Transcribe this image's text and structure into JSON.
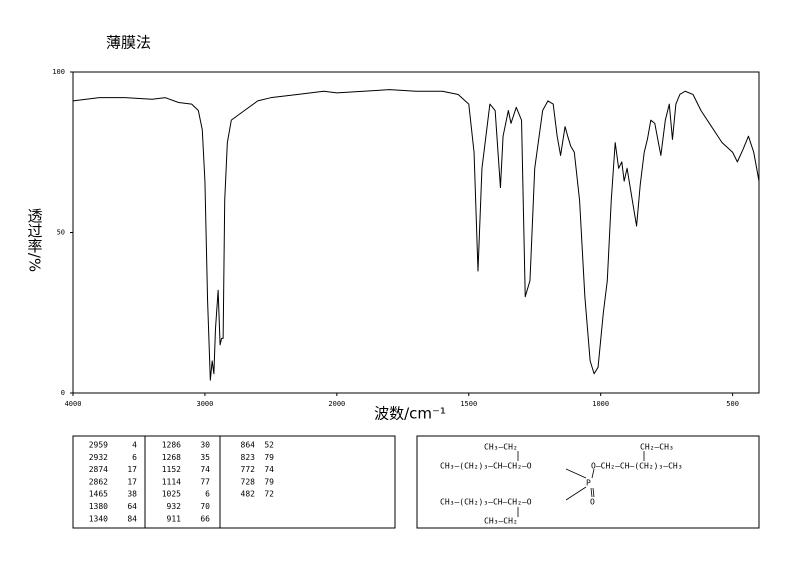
{
  "chart_data": {
    "type": "line",
    "title": "薄膜法",
    "x_label": "波数/cm⁻¹",
    "y_label": "透过率/%",
    "x": [
      4000,
      3800,
      3600,
      3400,
      3300,
      3200,
      3100,
      3050,
      3020,
      3000,
      2980,
      2959,
      2945,
      2932,
      2920,
      2900,
      2885,
      2874,
      2862,
      2850,
      2830,
      2800,
      2700,
      2600,
      2500,
      2300,
      2100,
      2000,
      1800,
      1700,
      1600,
      1540,
      1500,
      1480,
      1465,
      1450,
      1420,
      1400,
      1380,
      1370,
      1350,
      1340,
      1320,
      1300,
      1286,
      1268,
      1250,
      1220,
      1200,
      1180,
      1165,
      1152,
      1135,
      1125,
      1114,
      1100,
      1080,
      1060,
      1040,
      1025,
      1010,
      990,
      975,
      960,
      945,
      932,
      920,
      911,
      900,
      880,
      864,
      850,
      835,
      823,
      810,
      795,
      772,
      755,
      740,
      728,
      715,
      700,
      680,
      650,
      620,
      580,
      540,
      500,
      482,
      460,
      440,
      420,
      400
    ],
    "values": [
      91,
      92,
      92,
      91.5,
      92,
      90.5,
      90,
      88,
      82,
      66,
      29,
      4,
      10,
      6,
      20,
      32,
      15,
      17,
      17,
      60,
      78,
      85,
      88,
      91,
      92,
      93,
      94,
      93.5,
      94.5,
      94,
      94,
      93,
      90,
      75,
      38,
      70,
      90,
      88,
      64,
      80,
      88,
      84,
      89,
      85,
      30,
      35,
      70,
      88,
      91,
      90,
      80,
      74,
      83,
      80,
      77,
      75,
      60,
      30,
      10,
      6,
      8,
      25,
      35,
      60,
      78,
      70,
      72,
      66,
      70,
      60,
      52,
      65,
      75,
      79,
      85,
      84,
      74,
      85,
      90,
      79,
      90,
      93,
      94,
      93,
      88,
      83,
      78,
      75,
      72,
      76,
      80,
      75,
      66
    ],
    "color": "#000000",
    "xlim": [
      4000,
      400
    ],
    "xticks": [
      4000,
      3000,
      2000,
      1500,
      1000,
      500
    ],
    "ylim": [
      0,
      100
    ],
    "yticks": [
      0,
      50,
      100
    ],
    "grid": false
  },
  "peak_table": {
    "columns": [
      [
        [
          2959,
          4
        ],
        [
          2932,
          6
        ],
        [
          2874,
          17
        ],
        [
          2862,
          17
        ],
        [
          1465,
          38
        ],
        [
          1380,
          64
        ],
        [
          1340,
          84
        ]
      ],
      [
        [
          1286,
          30
        ],
        [
          1268,
          35
        ],
        [
          1152,
          74
        ],
        [
          1114,
          77
        ],
        [
          1025,
          6
        ],
        [
          932,
          70
        ],
        [
          911,
          66
        ]
      ],
      [
        [
          864,
          52
        ],
        [
          823,
          79
        ],
        [
          772,
          74
        ],
        [
          728,
          79
        ],
        [
          482,
          72
        ]
      ]
    ]
  },
  "structure": {
    "labels": [
      "CH₃—CH₂",
      "CH₂—CH₃",
      "CH₃—(CH₂)₃—CH—CH₂—O",
      "O—CH₂—CH—(CH₂)₃—CH₃",
      "P",
      "CH₃—(CH₂)₃—CH—CH₂—O",
      "O",
      "CH₃—CH₂"
    ]
  }
}
